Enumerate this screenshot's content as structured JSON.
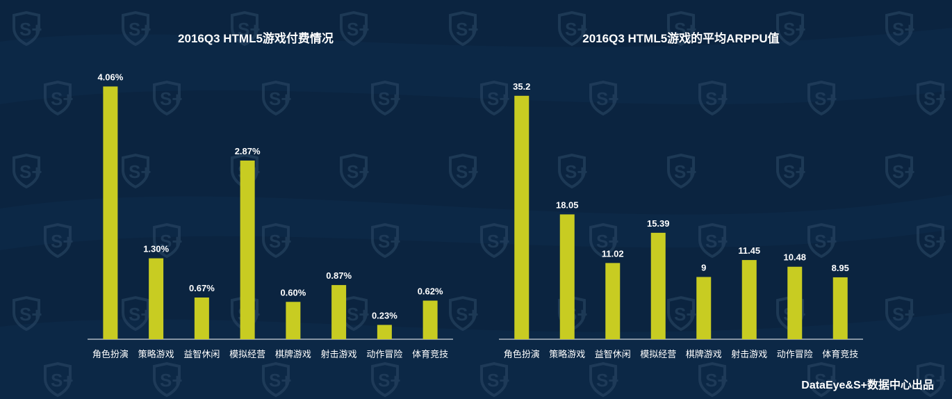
{
  "colors": {
    "background": "#0b2440",
    "bar": "#c8cc22",
    "text": "#ffffff",
    "axis": "#ffffff",
    "watermark": "#2a4764"
  },
  "watermark": {
    "text": "S+",
    "icon": "shield-s-plus-icon"
  },
  "footer": {
    "text": "DataEye&S+数据中心出品"
  },
  "chart_data": [
    {
      "type": "bar",
      "title": "2016Q3 HTML5游戏付费情况",
      "xlabel": "",
      "ylabel": "",
      "ylim": [
        0,
        4.5
      ],
      "grid": false,
      "categories": [
        "角色扮演",
        "策略游戏",
        "益智休闲",
        "模拟经营",
        "棋牌游戏",
        "射击游戏",
        "动作冒险",
        "体育竞技"
      ],
      "values": [
        4.06,
        1.3,
        0.67,
        2.87,
        0.6,
        0.87,
        0.23,
        0.62
      ],
      "labels": [
        "4.06%",
        "1.30%",
        "0.67%",
        "2.87%",
        "0.60%",
        "0.87%",
        "0.23%",
        "0.62%"
      ]
    },
    {
      "type": "bar",
      "title": "2016Q3 HTML5游戏的平均ARPPU值",
      "xlabel": "",
      "ylabel": "",
      "ylim": [
        0,
        39
      ],
      "grid": false,
      "categories": [
        "角色扮演",
        "策略游戏",
        "益智休闲",
        "模拟经营",
        "棋牌游戏",
        "射击游戏",
        "动作冒险",
        "体育竞技"
      ],
      "values": [
        35.2,
        18.05,
        11.02,
        15.39,
        9,
        11.45,
        10.48,
        8.95
      ],
      "labels": [
        "35.2",
        "18.05",
        "11.02",
        "15.39",
        "9",
        "11.45",
        "10.48",
        "8.95"
      ]
    }
  ]
}
